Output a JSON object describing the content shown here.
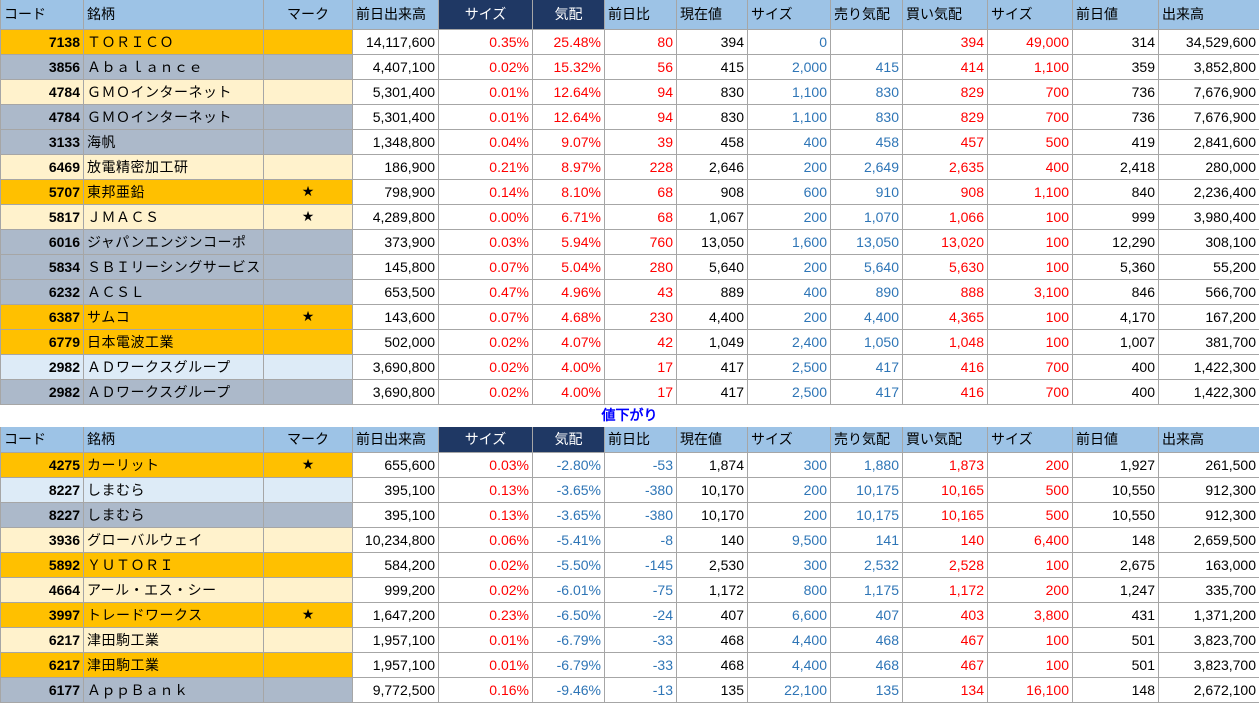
{
  "headers": [
    "コード",
    "銘柄",
    "マーク",
    "前日出来高",
    "サイズ",
    "気配",
    "前日比",
    "現在値",
    "サイズ",
    "売り気配",
    "買い気配",
    "サイズ",
    "前日値",
    "出来高"
  ],
  "divider_label": "値下がり",
  "colors": {
    "header_light": "#9dc3e6",
    "header_dark": "#1f3864",
    "positive": "#ff0000",
    "negative": "#2e75b6",
    "row_orange": "#ffc000",
    "row_gray": "#acb9ca",
    "row_cream": "#fff2cc",
    "row_light_blue": "#ddebf7"
  },
  "gainers": [
    {
      "code": "7138",
      "name": "ＴＯＲＩＣＯ",
      "mark": "",
      "prev_volume": "14,117,600",
      "size_pct": "0.35%",
      "quote_pct": "25.48%",
      "change": "80",
      "current": "394",
      "size1": "0",
      "ask": "",
      "bid": "394",
      "size2": "49,000",
      "prev_close": "314",
      "volume": "34,529,600",
      "bg": "orange"
    },
    {
      "code": "3856",
      "name": "Ａｂａｌａｎｃｅ",
      "mark": "",
      "prev_volume": "4,407,100",
      "size_pct": "0.02%",
      "quote_pct": "15.32%",
      "change": "56",
      "current": "415",
      "size1": "2,000",
      "ask": "415",
      "bid": "414",
      "size2": "1,100",
      "prev_close": "359",
      "volume": "3,852,800",
      "bg": "gray"
    },
    {
      "code": "4784",
      "name": "ＧＭＯインターネット",
      "mark": "",
      "prev_volume": "5,301,400",
      "size_pct": "0.01%",
      "quote_pct": "12.64%",
      "change": "94",
      "current": "830",
      "size1": "1,100",
      "ask": "830",
      "bid": "829",
      "size2": "700",
      "prev_close": "736",
      "volume": "7,676,900",
      "bg": "cream"
    },
    {
      "code": "4784",
      "name": "ＧＭＯインターネット",
      "mark": "",
      "prev_volume": "5,301,400",
      "size_pct": "0.01%",
      "quote_pct": "12.64%",
      "change": "94",
      "current": "830",
      "size1": "1,100",
      "ask": "830",
      "bid": "829",
      "size2": "700",
      "prev_close": "736",
      "volume": "7,676,900",
      "bg": "gray"
    },
    {
      "code": "3133",
      "name": "海帆",
      "mark": "",
      "prev_volume": "1,348,800",
      "size_pct": "0.04%",
      "quote_pct": "9.07%",
      "change": "39",
      "current": "458",
      "size1": "400",
      "ask": "458",
      "bid": "457",
      "size2": "500",
      "prev_close": "419",
      "volume": "2,841,600",
      "bg": "gray"
    },
    {
      "code": "6469",
      "name": "放電精密加工研",
      "mark": "",
      "prev_volume": "186,900",
      "size_pct": "0.21%",
      "quote_pct": "8.97%",
      "change": "228",
      "current": "2,646",
      "size1": "200",
      "ask": "2,649",
      "bid": "2,635",
      "size2": "400",
      "prev_close": "2,418",
      "volume": "280,000",
      "bg": "cream"
    },
    {
      "code": "5707",
      "name": "東邦亜鉛",
      "mark": "★",
      "prev_volume": "798,900",
      "size_pct": "0.14%",
      "quote_pct": "8.10%",
      "change": "68",
      "current": "908",
      "size1": "600",
      "ask": "910",
      "bid": "908",
      "size2": "1,100",
      "prev_close": "840",
      "volume": "2,236,400",
      "bg": "orange"
    },
    {
      "code": "5817",
      "name": "ＪＭＡＣＳ",
      "mark": "★",
      "prev_volume": "4,289,800",
      "size_pct": "0.00%",
      "quote_pct": "6.71%",
      "change": "68",
      "current": "1,067",
      "size1": "200",
      "ask": "1,070",
      "bid": "1,066",
      "size2": "100",
      "prev_close": "999",
      "volume": "3,980,400",
      "bg": "cream"
    },
    {
      "code": "6016",
      "name": "ジャパンエンジンコーポ",
      "mark": "",
      "prev_volume": "373,900",
      "size_pct": "0.03%",
      "quote_pct": "5.94%",
      "change": "760",
      "current": "13,050",
      "size1": "1,600",
      "ask": "13,050",
      "bid": "13,020",
      "size2": "100",
      "prev_close": "12,290",
      "volume": "308,100",
      "bg": "gray"
    },
    {
      "code": "5834",
      "name": "ＳＢＩリーシングサービス",
      "mark": "",
      "prev_volume": "145,800",
      "size_pct": "0.07%",
      "quote_pct": "5.04%",
      "change": "280",
      "current": "5,640",
      "size1": "200",
      "ask": "5,640",
      "bid": "5,630",
      "size2": "100",
      "prev_close": "5,360",
      "volume": "55,200",
      "bg": "gray"
    },
    {
      "code": "6232",
      "name": "ＡＣＳＬ",
      "mark": "",
      "prev_volume": "653,500",
      "size_pct": "0.47%",
      "quote_pct": "4.96%",
      "change": "43",
      "current": "889",
      "size1": "400",
      "ask": "890",
      "bid": "888",
      "size2": "3,100",
      "prev_close": "846",
      "volume": "566,700",
      "bg": "gray"
    },
    {
      "code": "6387",
      "name": "サムコ",
      "mark": "★",
      "prev_volume": "143,600",
      "size_pct": "0.07%",
      "quote_pct": "4.68%",
      "change": "230",
      "current": "4,400",
      "size1": "200",
      "ask": "4,400",
      "bid": "4,365",
      "size2": "100",
      "prev_close": "4,170",
      "volume": "167,200",
      "bg": "orange"
    },
    {
      "code": "6779",
      "name": "日本電波工業",
      "mark": "",
      "prev_volume": "502,000",
      "size_pct": "0.02%",
      "quote_pct": "4.07%",
      "change": "42",
      "current": "1,049",
      "size1": "2,400",
      "ask": "1,050",
      "bid": "1,048",
      "size2": "100",
      "prev_close": "1,007",
      "volume": "381,700",
      "bg": "orange"
    },
    {
      "code": "2982",
      "name": "ＡＤワークスグループ",
      "mark": "",
      "prev_volume": "3,690,800",
      "size_pct": "0.02%",
      "quote_pct": "4.00%",
      "change": "17",
      "current": "417",
      "size1": "2,500",
      "ask": "417",
      "bid": "416",
      "size2": "700",
      "prev_close": "400",
      "volume": "1,422,300",
      "bg": "lblue"
    },
    {
      "code": "2982",
      "name": "ＡＤワークスグループ",
      "mark": "",
      "prev_volume": "3,690,800",
      "size_pct": "0.02%",
      "quote_pct": "4.00%",
      "change": "17",
      "current": "417",
      "size1": "2,500",
      "ask": "417",
      "bid": "416",
      "size2": "700",
      "prev_close": "400",
      "volume": "1,422,300",
      "bg": "gray"
    }
  ],
  "losers": [
    {
      "code": "4275",
      "name": "カーリット",
      "mark": "★",
      "prev_volume": "655,600",
      "size_pct": "0.03%",
      "quote_pct": "-2.80%",
      "change": "-53",
      "current": "1,874",
      "size1": "300",
      "ask": "1,880",
      "bid": "1,873",
      "size2": "200",
      "prev_close": "1,927",
      "volume": "261,500",
      "bg": "orange"
    },
    {
      "code": "8227",
      "name": "しまむら",
      "mark": "",
      "prev_volume": "395,100",
      "size_pct": "0.13%",
      "quote_pct": "-3.65%",
      "change": "-380",
      "current": "10,170",
      "size1": "200",
      "ask": "10,175",
      "bid": "10,165",
      "size2": "500",
      "prev_close": "10,550",
      "volume": "912,300",
      "bg": "lblue"
    },
    {
      "code": "8227",
      "name": "しまむら",
      "mark": "",
      "prev_volume": "395,100",
      "size_pct": "0.13%",
      "quote_pct": "-3.65%",
      "change": "-380",
      "current": "10,170",
      "size1": "200",
      "ask": "10,175",
      "bid": "10,165",
      "size2": "500",
      "prev_close": "10,550",
      "volume": "912,300",
      "bg": "gray"
    },
    {
      "code": "3936",
      "name": "グローバルウェイ",
      "mark": "",
      "prev_volume": "10,234,800",
      "size_pct": "0.06%",
      "quote_pct": "-5.41%",
      "change": "-8",
      "current": "140",
      "size1": "9,500",
      "ask": "141",
      "bid": "140",
      "size2": "6,400",
      "prev_close": "148",
      "volume": "2,659,500",
      "bg": "cream"
    },
    {
      "code": "5892",
      "name": "ＹＵＴＯＲＩ",
      "mark": "",
      "prev_volume": "584,200",
      "size_pct": "0.02%",
      "quote_pct": "-5.50%",
      "change": "-145",
      "current": "2,530",
      "size1": "300",
      "ask": "2,532",
      "bid": "2,528",
      "size2": "100",
      "prev_close": "2,675",
      "volume": "163,000",
      "bg": "orange"
    },
    {
      "code": "4664",
      "name": "アール・エス・シー",
      "mark": "",
      "prev_volume": "999,200",
      "size_pct": "0.02%",
      "quote_pct": "-6.01%",
      "change": "-75",
      "current": "1,172",
      "size1": "800",
      "ask": "1,175",
      "bid": "1,172",
      "size2": "200",
      "prev_close": "1,247",
      "volume": "335,700",
      "bg": "cream"
    },
    {
      "code": "3997",
      "name": "トレードワークス",
      "mark": "★",
      "prev_volume": "1,647,200",
      "size_pct": "0.23%",
      "quote_pct": "-6.50%",
      "change": "-24",
      "current": "407",
      "size1": "6,600",
      "ask": "407",
      "bid": "403",
      "size2": "3,800",
      "prev_close": "431",
      "volume": "1,371,200",
      "bg": "orange"
    },
    {
      "code": "6217",
      "name": "津田駒工業",
      "mark": "",
      "prev_volume": "1,957,100",
      "size_pct": "0.01%",
      "quote_pct": "-6.79%",
      "change": "-33",
      "current": "468",
      "size1": "4,400",
      "ask": "468",
      "bid": "467",
      "size2": "100",
      "prev_close": "501",
      "volume": "3,823,700",
      "bg": "cream"
    },
    {
      "code": "6217",
      "name": "津田駒工業",
      "mark": "",
      "prev_volume": "1,957,100",
      "size_pct": "0.01%",
      "quote_pct": "-6.79%",
      "change": "-33",
      "current": "468",
      "size1": "4,400",
      "ask": "468",
      "bid": "467",
      "size2": "100",
      "prev_close": "501",
      "volume": "3,823,700",
      "bg": "orange"
    },
    {
      "code": "6177",
      "name": "ＡｐｐＢａｎｋ",
      "mark": "",
      "prev_volume": "9,772,500",
      "size_pct": "0.16%",
      "quote_pct": "-9.46%",
      "change": "-13",
      "current": "135",
      "size1": "22,100",
      "ask": "135",
      "bid": "134",
      "size2": "16,100",
      "prev_close": "148",
      "volume": "2,672,100",
      "bg": "gray"
    }
  ]
}
